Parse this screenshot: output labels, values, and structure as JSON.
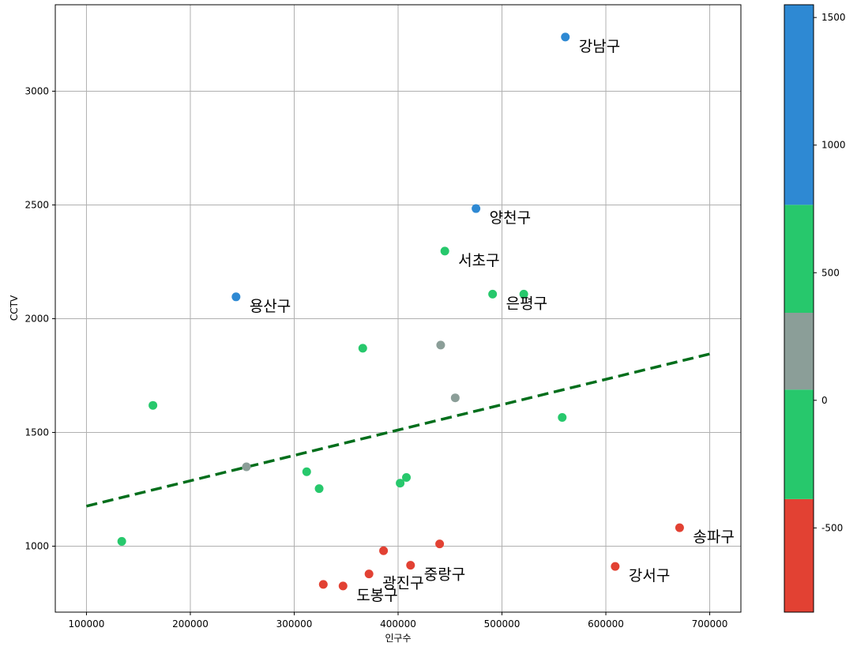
{
  "chart_data": {
    "type": "scatter",
    "xlabel": "인구수",
    "ylabel": "CCTV",
    "xlim": [
      70000,
      730000
    ],
    "ylim": [
      710,
      3380
    ],
    "xticks": [
      100000,
      200000,
      300000,
      400000,
      500000,
      600000,
      700000
    ],
    "yticks": [
      1000,
      1500,
      2000,
      2500,
      3000
    ],
    "grid": true,
    "points": [
      {
        "x": 561000,
        "y": 3238,
        "c": 1500,
        "label": "강남구"
      },
      {
        "x": 475000,
        "y": 2484,
        "c": 1000,
        "label": "양천구"
      },
      {
        "x": 445000,
        "y": 2297,
        "c": 600,
        "label": "서초구"
      },
      {
        "x": 491000,
        "y": 2108,
        "c": 600,
        "label": "은평구"
      },
      {
        "x": 244000,
        "y": 2096,
        "c": 1000,
        "label": "용산구"
      },
      {
        "x": 671000,
        "y": 1081,
        "c": -700,
        "label": "송파구"
      },
      {
        "x": 609000,
        "y": 911,
        "c": -700,
        "label": "강서구"
      },
      {
        "x": 412000,
        "y": 916,
        "c": -700,
        "label": "중랑구"
      },
      {
        "x": 372000,
        "y": 878,
        "c": -700,
        "label": "광진구"
      },
      {
        "x": 347000,
        "y": 825,
        "c": -700,
        "label": "도봉구"
      },
      {
        "x": 521000,
        "y": 2108,
        "c": 600,
        "label": ""
      },
      {
        "x": 366000,
        "y": 1870,
        "c": 500,
        "label": ""
      },
      {
        "x": 441000,
        "y": 1884,
        "c": 100,
        "label": ""
      },
      {
        "x": 455000,
        "y": 1652,
        "c": 100,
        "label": ""
      },
      {
        "x": 558000,
        "y": 1566,
        "c": 500,
        "label": ""
      },
      {
        "x": 164000,
        "y": 1619,
        "c": 600,
        "label": ""
      },
      {
        "x": 254000,
        "y": 1349,
        "c": 100,
        "label": ""
      },
      {
        "x": 312000,
        "y": 1327,
        "c": -300,
        "label": ""
      },
      {
        "x": 324000,
        "y": 1253,
        "c": -300,
        "label": ""
      },
      {
        "x": 402000,
        "y": 1277,
        "c": -300,
        "label": ""
      },
      {
        "x": 408000,
        "y": 1302,
        "c": -300,
        "label": ""
      },
      {
        "x": 134000,
        "y": 1021,
        "c": -300,
        "label": ""
      },
      {
        "x": 386000,
        "y": 980,
        "c": -700,
        "label": ""
      },
      {
        "x": 440000,
        "y": 1010,
        "c": -700,
        "label": ""
      },
      {
        "x": 328000,
        "y": 832,
        "c": -700,
        "label": ""
      }
    ],
    "trendline": {
      "x": [
        100000,
        700000
      ],
      "y": [
        1176,
        1845
      ],
      "color": "#006e1b",
      "style": "dashed"
    },
    "colorbar": {
      "range": [
        -830,
        1550
      ],
      "ticks": [
        -500,
        0,
        500,
        1000,
        1500
      ],
      "bands": [
        {
          "from": -830,
          "to": -387,
          "color": "#e24133"
        },
        {
          "from": -387,
          "to": 42,
          "color": "#27c86c"
        },
        {
          "from": 42,
          "to": 343,
          "color": "#8b9e98"
        },
        {
          "from": 343,
          "to": 766,
          "color": "#27c86c"
        },
        {
          "from": 766,
          "to": 1550,
          "color": "#2e89d3"
        }
      ]
    },
    "colors": {
      "grid": "#b0b0b0"
    }
  }
}
